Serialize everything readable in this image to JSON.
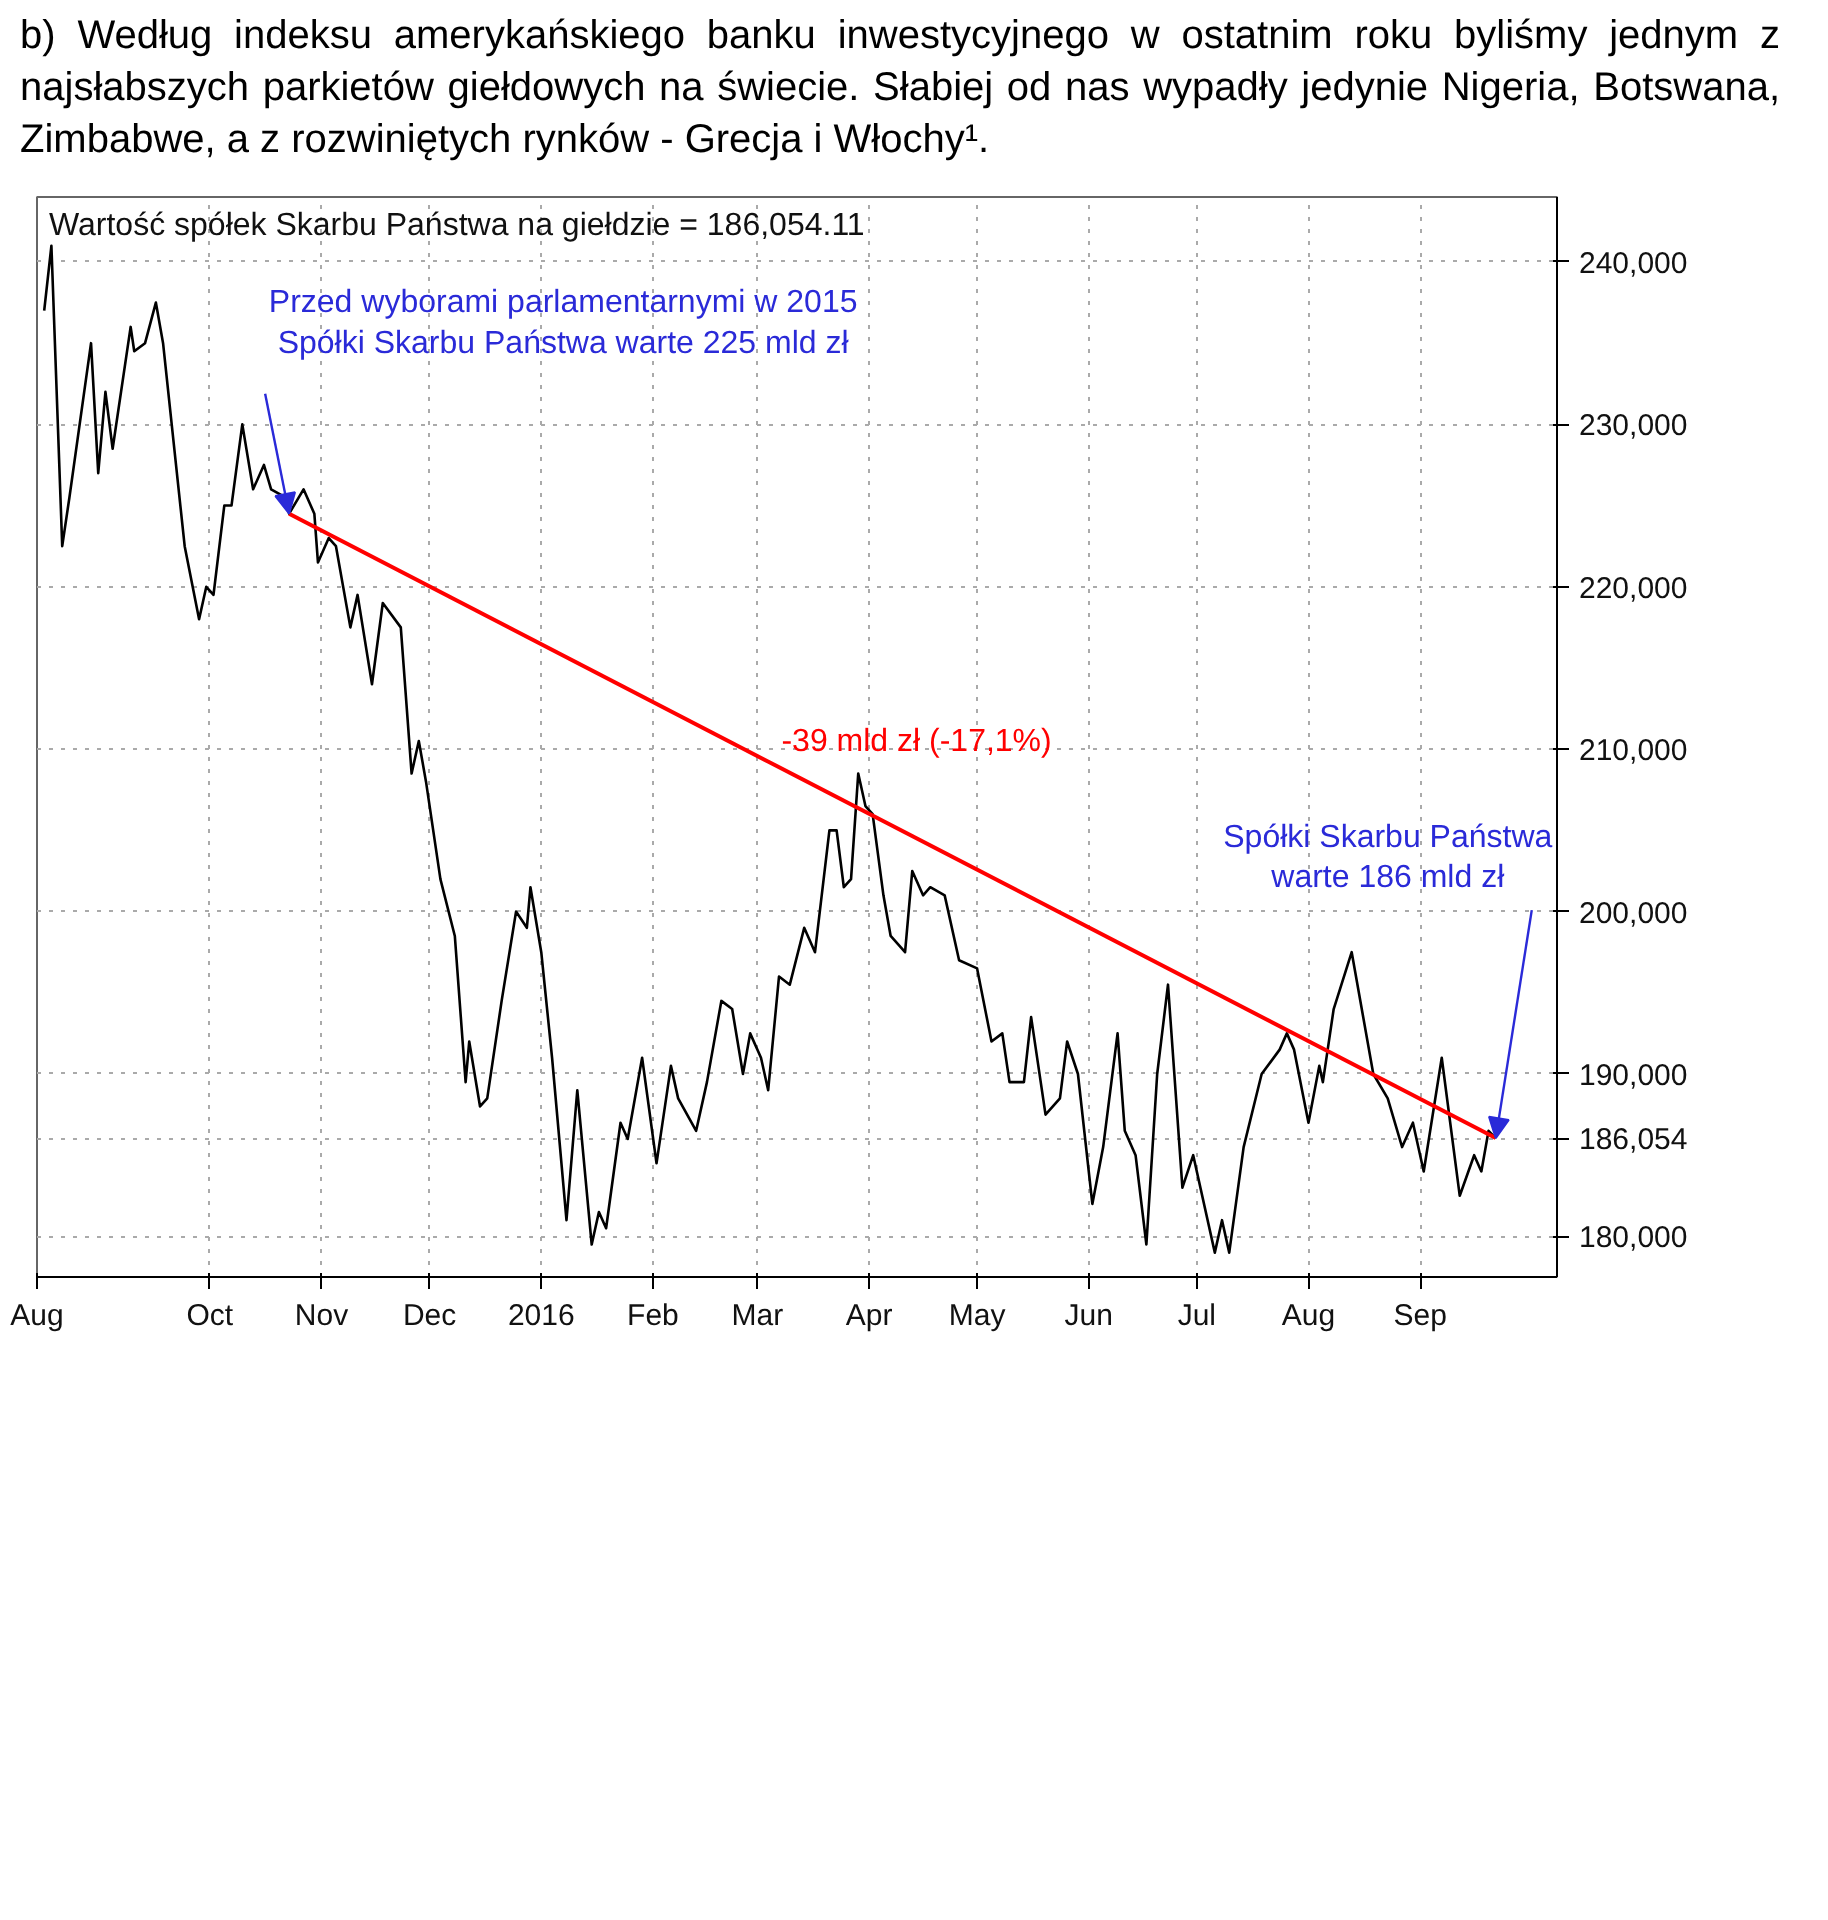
{
  "chart_data": {
    "type": "line",
    "title": "Wartość spółek Skarbu Państwa na giełdzie = 186,054.11",
    "annotations": [
      "b) Według indeksu amerykańskiego banku inwestycyjnego w ostatnim roku byliśmy jednym z najsłabszych parkietów giełdowych na świecie. Słabiej od nas wypadły jedynie Nigeria, Botswana, Zimbabwe, a z rozwiniętych rynków - Grecja i Włochy¹.",
      {
        "text": "Przed wyborami parlamentarnymi w 2015\nSpółki Skarbu Państwa warte 225 mld zł",
        "x": "2015-10-23",
        "y": 224500
      },
      {
        "text": "Spółki Skarbu Państwa\nwarte 186 mld zł",
        "x": "2016-09-22",
        "y": 186054
      },
      "-39 mld zł (-17,1%)"
    ],
    "xlim": [
      "2015-08-14",
      "2016-10-09"
    ],
    "xticks": [
      {
        "value": "2015-08-14",
        "label": "Aug"
      },
      {
        "value": "2015-10-01",
        "label": "Oct"
      },
      {
        "value": "2015-11-01",
        "label": "Nov"
      },
      {
        "value": "2015-12-01",
        "label": "Dec"
      },
      {
        "value": "2016-01-01",
        "label": "2016"
      },
      {
        "value": "2016-02-01",
        "label": "Feb"
      },
      {
        "value": "2016-03-01",
        "label": "Mar"
      },
      {
        "value": "2016-04-01",
        "label": "Apr"
      },
      {
        "value": "2016-05-01",
        "label": "May"
      },
      {
        "value": "2016-06-01",
        "label": "Jun"
      },
      {
        "value": "2016-07-01",
        "label": "Jul"
      },
      {
        "value": "2016-08-01",
        "label": "Aug"
      },
      {
        "value": "2016-09-01",
        "label": "Sep"
      }
    ],
    "ylim": [
      177500,
      244000
    ],
    "yticks": [
      {
        "value": 180000,
        "label": "180,000"
      },
      {
        "value": 186054,
        "label": "186,054"
      },
      {
        "value": 190000,
        "label": "190,000"
      },
      {
        "value": 200000,
        "label": "200,000"
      },
      {
        "value": 210000,
        "label": "210,000"
      },
      {
        "value": 220000,
        "label": "220,000"
      },
      {
        "value": 230000,
        "label": "230,000"
      },
      {
        "value": 240000,
        "label": "240,000"
      }
    ],
    "grid": true,
    "series": [
      {
        "color": "#000000",
        "x": [
          "2015-08-16",
          "2015-08-18",
          "2015-08-21",
          "2015-08-23",
          "2015-08-29",
          "2015-08-31",
          "2015-09-02",
          "2015-09-04",
          "2015-09-09",
          "2015-09-10",
          "2015-09-13",
          "2015-09-16",
          "2015-09-18",
          "2015-09-24",
          "2015-09-28",
          "2015-09-30",
          "2015-10-02",
          "2015-10-05",
          "2015-10-07",
          "2015-10-10",
          "2015-10-13",
          "2015-10-16",
          "2015-10-18",
          "2015-10-22",
          "2015-10-23",
          "2015-10-27",
          "2015-10-30",
          "2015-10-31",
          "2015-11-03",
          "2015-11-05",
          "2015-11-09",
          "2015-11-11",
          "2015-11-15",
          "2015-11-18",
          "2015-11-23",
          "2015-11-26",
          "2015-11-28",
          "2015-11-30",
          "2015-12-04",
          "2015-12-08",
          "2015-12-11",
          "2015-12-12",
          "2015-12-15",
          "2015-12-17",
          "2015-12-21",
          "2015-12-25",
          "2015-12-28",
          "2015-12-29",
          "2016-01-01",
          "2016-01-04",
          "2016-01-08",
          "2016-01-11",
          "2016-01-15",
          "2016-01-17",
          "2016-01-19",
          "2016-01-23",
          "2016-01-25",
          "2016-01-29",
          "2016-02-02",
          "2016-02-06",
          "2016-02-08",
          "2016-02-13",
          "2016-02-16",
          "2016-02-20",
          "2016-02-23",
          "2016-02-26",
          "2016-02-28",
          "2016-03-02",
          "2016-03-04",
          "2016-03-07",
          "2016-03-10",
          "2016-03-14",
          "2016-03-17",
          "2016-03-21",
          "2016-03-23",
          "2016-03-25",
          "2016-03-27",
          "2016-03-29",
          "2016-03-31",
          "2016-04-02",
          "2016-04-05",
          "2016-04-07",
          "2016-04-11",
          "2016-04-13",
          "2016-04-16",
          "2016-04-18",
          "2016-04-22",
          "2016-04-26",
          "2016-05-01",
          "2016-05-05",
          "2016-05-08",
          "2016-05-10",
          "2016-05-14",
          "2016-05-16",
          "2016-05-20",
          "2016-05-24",
          "2016-05-26",
          "2016-05-29",
          "2016-06-02",
          "2016-06-05",
          "2016-06-09",
          "2016-06-11",
          "2016-06-14",
          "2016-06-17",
          "2016-06-20",
          "2016-06-23",
          "2016-06-27",
          "2016-06-30",
          "2016-07-06",
          "2016-07-08",
          "2016-07-10",
          "2016-07-14",
          "2016-07-19",
          "2016-07-24",
          "2016-07-26",
          "2016-07-28",
          "2016-08-01",
          "2016-08-04",
          "2016-08-05",
          "2016-08-08",
          "2016-08-13",
          "2016-08-19",
          "2016-08-23",
          "2016-08-27",
          "2016-08-30",
          "2016-09-02",
          "2016-09-07",
          "2016-09-12",
          "2016-09-16",
          "2016-09-18",
          "2016-09-20",
          "2016-09-22"
        ],
        "values": [
          237000,
          241000,
          222500,
          225500,
          235000,
          227000,
          232000,
          228500,
          236000,
          234500,
          235000,
          237500,
          235000,
          222500,
          218000,
          220000,
          219500,
          225000,
          225000,
          230000,
          226000,
          227500,
          226000,
          225500,
          224500,
          226000,
          224500,
          221500,
          223000,
          222500,
          217500,
          219500,
          214000,
          219000,
          217500,
          208500,
          210500,
          208000,
          202000,
          198500,
          189500,
          192000,
          188000,
          188500,
          194500,
          200000,
          199000,
          201500,
          197500,
          191000,
          181000,
          189000,
          179500,
          181500,
          180500,
          187000,
          186000,
          191000,
          184500,
          190500,
          188500,
          186500,
          189500,
          194500,
          194000,
          190000,
          192500,
          191000,
          189000,
          196000,
          195500,
          199000,
          197500,
          205000,
          205000,
          201500,
          202000,
          208500,
          206500,
          206000,
          201000,
          198500,
          197500,
          202500,
          201000,
          201500,
          201000,
          197000,
          196500,
          192000,
          192500,
          189500,
          189500,
          193500,
          187500,
          188500,
          192000,
          190000,
          182000,
          185500,
          192500,
          186500,
          185000,
          179500,
          190000,
          195500,
          183000,
          185000,
          179000,
          181000,
          179000,
          185500,
          190000,
          191500,
          192500,
          191500,
          187000,
          190500,
          189500,
          194000,
          197500,
          190000,
          188500,
          185500,
          187000,
          184000,
          191000,
          182500,
          185000,
          184000,
          186500,
          186054
        ]
      },
      {
        "type": "line",
        "color": "#ff0000",
        "x": [
          "2015-10-23",
          "2016-09-22"
        ],
        "values": [
          224500,
          186054
        ]
      }
    ]
  }
}
